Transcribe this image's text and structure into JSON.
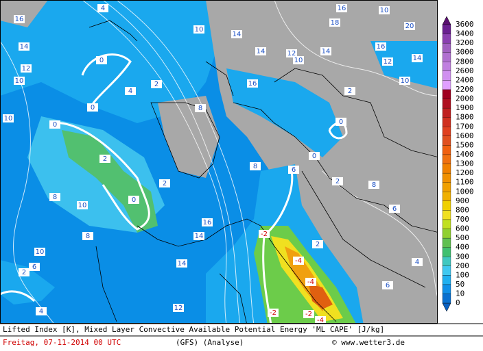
{
  "title": "Lifted Index [K], Mixed Layer Convective Available Potential Energy 'ML CAPE' [J/kg]",
  "date": "Freitag, 07-11-2014  00 UTC",
  "model": "(GFS)  (Analyse)",
  "credit": "© www.wetter3.de",
  "scale": [
    3600,
    3400,
    3200,
    3000,
    2800,
    2600,
    2400,
    2200,
    2000,
    1900,
    1800,
    1700,
    1600,
    1500,
    1400,
    1300,
    1200,
    1100,
    1000,
    900,
    800,
    700,
    600,
    500,
    400,
    300,
    200,
    100,
    50,
    10,
    0
  ],
  "contour_labels": [
    16,
    14,
    12,
    10,
    10,
    8,
    10,
    8,
    10,
    6,
    2,
    4,
    0,
    0,
    2,
    4,
    0,
    2,
    0,
    2,
    8,
    10,
    14,
    14,
    16,
    16,
    18,
    20,
    14,
    12,
    10,
    16,
    14,
    12,
    10,
    2,
    0,
    0,
    8,
    6,
    2,
    -2,
    -4,
    -4,
    -2,
    -2,
    -4,
    2,
    8,
    6,
    6,
    4,
    14,
    12,
    14,
    16,
    10,
    4
  ]
}
